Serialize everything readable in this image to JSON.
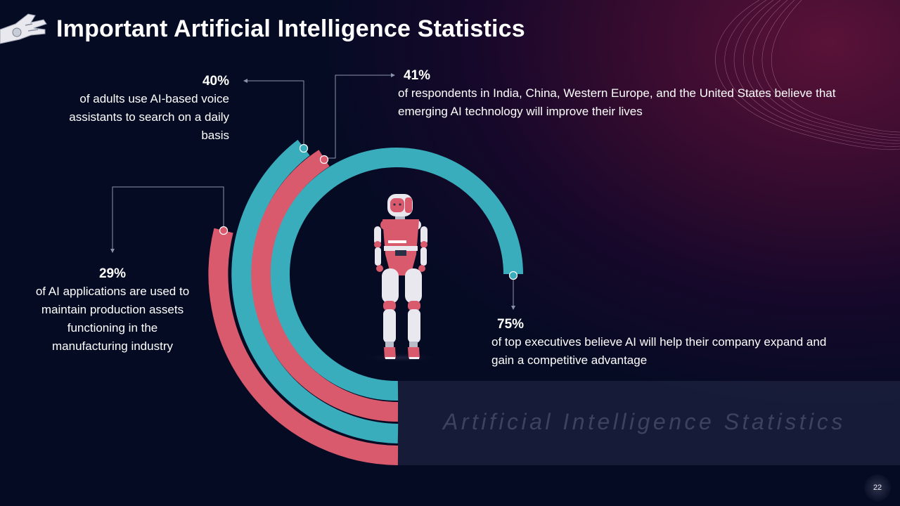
{
  "slide": {
    "title": "Important Artificial Intelligence Statistics",
    "watermark": "Artificial Intelligence Statistics",
    "page_number": "22",
    "icon": "robot-hand-icon",
    "colors": {
      "background": "#060b24",
      "accent_teal": "#3aadbd",
      "accent_red": "#d95a6c",
      "text": "#ffffff"
    }
  },
  "stats": {
    "s40": {
      "value": "40%",
      "text": "of adults use AI-based voice assistants to search on a daily basis"
    },
    "s41": {
      "value": "41%",
      "text": "of respondents in India, China, Western Europe, and the United States believe that emerging AI technology will improve their lives"
    },
    "s29": {
      "value": "29%",
      "text": "of AI applications are used to maintain production assets functioning in the manufacturing industry"
    },
    "s75": {
      "value": "75%",
      "text": "of top executives believe AI will help their company expand and gain a competitive advantage"
    }
  },
  "chart_data": {
    "type": "radial-bar",
    "series": [
      {
        "value": 75,
        "color": "#3aadbd"
      },
      {
        "value": 41,
        "color": "#d95a6c"
      },
      {
        "value": 40,
        "color": "#3aadbd"
      },
      {
        "value": 29,
        "color": "#d95a6c"
      }
    ]
  }
}
